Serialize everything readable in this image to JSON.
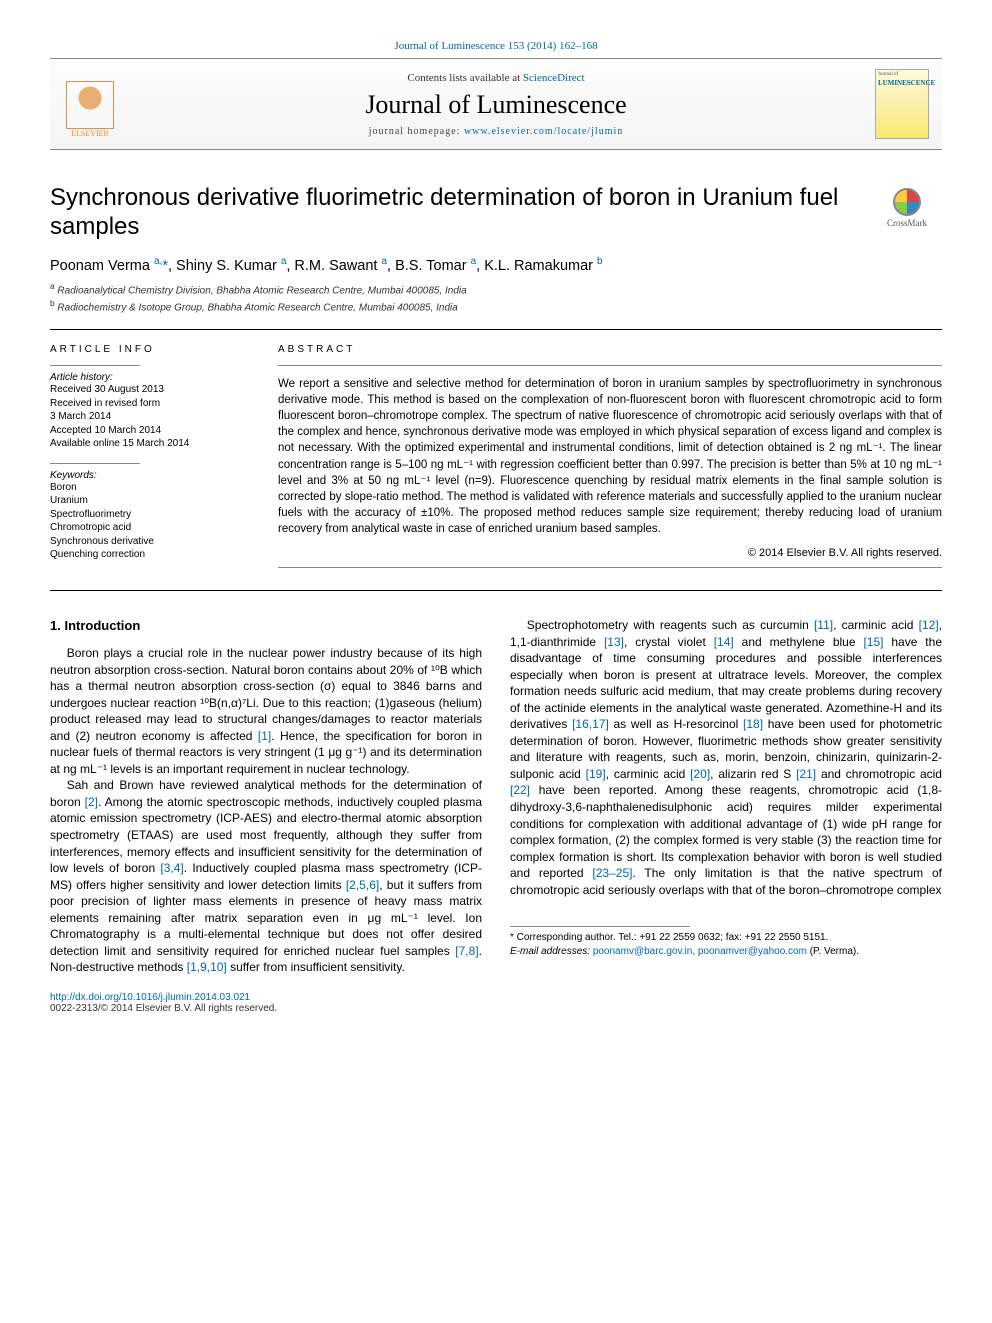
{
  "banner": {
    "top_link": "Journal of Luminescence 153 (2014) 162–168",
    "contents_prefix": "Contents lists available at ",
    "contents_link": "ScienceDirect",
    "journal_title": "Journal of Luminescence",
    "homepage_prefix": "journal homepage: ",
    "homepage_url": "www.elsevier.com/locate/jlumin",
    "publisher_name": "ELSEVIER",
    "cover_label": "LUMINESCENCE"
  },
  "crossmark_label": "CrossMark",
  "title": "Synchronous derivative fluorimetric determination of boron in Uranium fuel samples",
  "authors_html": "Poonam Verma <sup>a,</sup><span class='star'>*</span>, Shiny S. Kumar <sup>a</sup>, R.M. Sawant <sup>a</sup>, B.S. Tomar <sup>a</sup>, K.L. Ramakumar <sup>b</sup>",
  "affiliations": [
    {
      "mark": "a",
      "text": "Radioanalytical Chemistry Division, Bhabha Atomic Research Centre, Mumbai 400085, India"
    },
    {
      "mark": "b",
      "text": "Radiochemistry & Isotope Group, Bhabha Atomic Research Centre, Mumbai 400085, India"
    }
  ],
  "article_info": {
    "header": "ARTICLE INFO",
    "history_label": "Article history:",
    "history": [
      "Received 30 August 2013",
      "Received in revised form",
      "3 March 2014",
      "Accepted 10 March 2014",
      "Available online 15 March 2014"
    ],
    "keywords_label": "Keywords:",
    "keywords": [
      "Boron",
      "Uranium",
      "Spectrofluorimetry",
      "Chromotropic acid",
      "Synchronous derivative",
      "Quenching correction"
    ]
  },
  "abstract": {
    "header": "ABSTRACT",
    "text": "We report a sensitive and selective method for determination of boron in uranium samples by spectrofluorimetry in synchronous derivative mode. This method is based on the complexation of non-fluorescent boron with fluorescent chromotropic acid to form fluorescent boron–chromotrope complex. The spectrum of native fluorescence of chromotropic acid seriously overlaps with that of the complex and hence, synchronous derivative mode was employed in which physical separation of excess ligand and complex is not necessary. With the optimized experimental and instrumental conditions, limit of detection obtained is 2 ng mL⁻¹. The linear concentration range is 5–100 ng mL⁻¹ with regression coefficient better than 0.997. The precision is better than 5% at 10 ng mL⁻¹ level and 3% at 50 ng mL⁻¹ level (n=9). Fluorescence quenching by residual matrix elements in the final sample solution is corrected by slope-ratio method. The method is validated with reference materials and successfully applied to the uranium nuclear fuels with the accuracy of ±10%. The proposed method reduces sample size requirement; thereby reducing load of uranium recovery from analytical waste in case of enriched uranium based samples.",
    "copyright": "© 2014 Elsevier B.V. All rights reserved."
  },
  "body": {
    "section_title": "1.  Introduction",
    "paragraphs": [
      "Boron plays a crucial role in the nuclear power industry because of its high neutron absorption cross-section. Natural boron contains about 20% of ¹⁰B which has a thermal neutron absorption cross-section (σ) equal to 3846 barns and undergoes nuclear reaction ¹⁰B(n,α)⁷Li. Due to this reaction; (1)gaseous (helium) product released may lead to structural changes/damages to reactor materials and (2) neutron economy is affected <span class='cite'>[1]</span>. Hence, the specification for boron in nuclear fuels of thermal reactors is very stringent (1 μg g⁻¹) and its determination at ng mL⁻¹ levels is an important requirement in nuclear technology.",
      "Sah and Brown have reviewed analytical methods for the determination of boron <span class='cite'>[2]</span>. Among the atomic spectroscopic methods, inductively coupled plasma atomic emission spectrometry (ICP-AES) and electro-thermal atomic absorption spectrometry (ETAAS) are used most frequently, although they suffer from interferences, memory effects and insufficient sensitivity for the determination of low levels of boron <span class='cite'>[3,4]</span>. Inductively coupled plasma mass spectrometry (ICP-MS) offers higher sensitivity and lower detection limits <span class='cite'>[2,5,6]</span>, but it suffers from poor precision of lighter mass elements in presence of heavy mass matrix elements remaining after matrix separation even in μg mL⁻¹ level. Ion Chromatography is a multi-elemental technique but does not offer desired detection limit and sensitivity required for enriched nuclear fuel samples <span class='cite'>[7,8]</span>. Non-destructive methods <span class='cite'>[1,9,10]</span> suffer from insufficient sensitivity.",
      "Spectrophotometry with reagents such as curcumin <span class='cite'>[11]</span>, carminic acid <span class='cite'>[12]</span>, 1,1-dianthrimide <span class='cite'>[13]</span>, crystal violet <span class='cite'>[14]</span> and methylene blue <span class='cite'>[15]</span> have the disadvantage of time consuming procedures and possible interferences especially when boron is present at ultratrace levels. Moreover, the complex formation needs sulfuric acid medium, that may create problems during recovery of the actinide elements in the analytical waste generated. Azomethine-H and its derivatives <span class='cite'>[16,17]</span> as well as H-resorcinol <span class='cite'>[18]</span> have been used for photometric determination of boron. However, fluorimetric methods show greater sensitivity and literature with reagents, such as, morin, benzoin, chinizarin, quinizarin-2-sulponic acid <span class='cite'>[19]</span>, carminic acid <span class='cite'>[20]</span>, alizarin red S <span class='cite'>[21]</span> and chromotropic acid <span class='cite'>[22]</span> have been reported. Among these reagents, chromotropic acid (1,8-dihydroxy-3,6-naphthalenedisulphonic acid) requires milder experimental conditions for complexation with additional advantage of (1) wide pH range for complex formation, (2) the complex formed is very stable (3) the reaction time for complex formation is short. Its complexation behavior with boron is well studied and reported <span class='cite'>[23–25]</span>. The only limitation is that the native spectrum of chromotropic acid seriously overlaps with that of the boron–chromotrope complex"
    ]
  },
  "footnotes": {
    "corresponding": "* Corresponding author. Tel.: +91 22 2559 0632; fax: +91 22 2550 5151.",
    "email_label": "E-mail addresses: ",
    "emails": "poonamv@barc.gov.in, poonamver@yahoo.com",
    "email_person": " (P. Verma)."
  },
  "footer": {
    "doi": "http://dx.doi.org/10.1016/j.jlumin.2014.03.021",
    "issn_copy": "0022-2313/© 2014 Elsevier B.V. All rights reserved."
  },
  "colors": {
    "link": "#0066aa",
    "text": "#000000",
    "rule": "#888888",
    "elsevier_orange": "#ee8833",
    "cover_yellow": "#f8e870"
  },
  "fonts": {
    "body_family": "Helvetica Neue, Arial, sans-serif",
    "title_size_pt": 24,
    "abstract_size_pt": 11.5,
    "body_size_pt": 12,
    "info_size_pt": 10
  }
}
